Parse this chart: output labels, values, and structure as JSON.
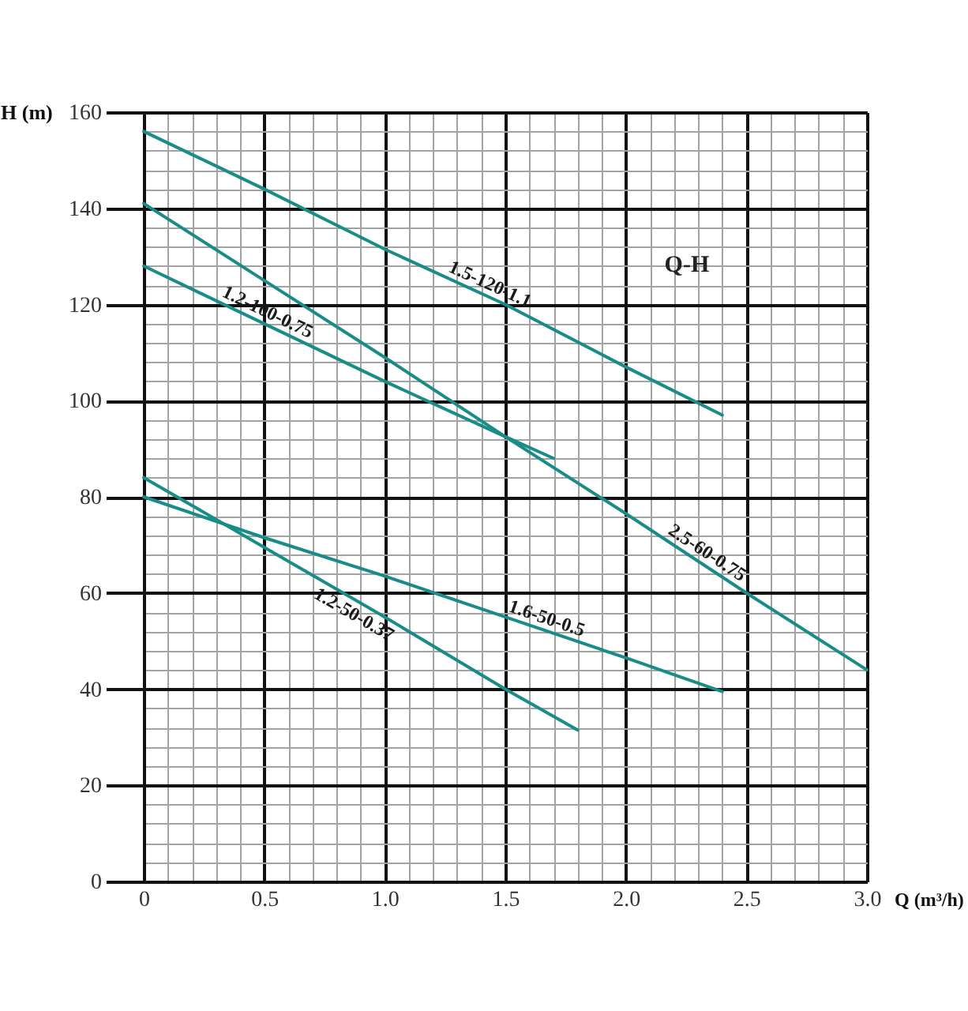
{
  "chart_data": {
    "type": "line",
    "title": "Q-H",
    "xlabel": "Q (m³/h)",
    "ylabel": "H (m)",
    "xlim": [
      0,
      3
    ],
    "ylim": [
      0,
      160
    ],
    "xticks": [
      0,
      {
        "value": 0.1,
        "label": null
      },
      {
        "value": 0.2,
        "label": null
      },
      {
        "value": 0.3,
        "label": null
      },
      {
        "value": 0.4,
        "label": null
      },
      0.5,
      {
        "value": 0.6,
        "label": null
      },
      {
        "value": 0.7,
        "label": null
      },
      {
        "value": 0.8,
        "label": null
      },
      {
        "value": 0.9,
        "label": null
      },
      {
        "value": 1,
        "label": "1.0"
      },
      {
        "value": 1.1,
        "label": null
      },
      {
        "value": 1.2,
        "label": null
      },
      {
        "value": 1.3,
        "label": null
      },
      {
        "value": 1.4,
        "label": null
      },
      1.5,
      {
        "value": 1.6,
        "label": null
      },
      {
        "value": 1.7,
        "label": null
      },
      {
        "value": 1.8,
        "label": null
      },
      {
        "value": 1.9,
        "label": null
      },
      {
        "value": 2,
        "label": "2.0"
      },
      {
        "value": 2.1,
        "label": null
      },
      {
        "value": 2.2,
        "label": null
      },
      {
        "value": 2.3,
        "label": null
      },
      {
        "value": 2.4,
        "label": null
      },
      2.5,
      {
        "value": 2.6,
        "label": null
      },
      {
        "value": 2.7,
        "label": null
      },
      {
        "value": 2.8,
        "label": null
      },
      {
        "value": 2.9,
        "label": null
      },
      {
        "value": 3,
        "label": "3.0"
      }
    ],
    "yticks": [
      0,
      {
        "value": 4,
        "label": null
      },
      {
        "value": 8,
        "label": null
      },
      {
        "value": 12,
        "label": null
      },
      {
        "value": 16,
        "label": null
      },
      20,
      {
        "value": 24,
        "label": null
      },
      {
        "value": 28,
        "label": null
      },
      {
        "value": 32,
        "label": null
      },
      {
        "value": 36,
        "label": null
      },
      40,
      {
        "value": 44,
        "label": null
      },
      {
        "value": 48,
        "label": null
      },
      {
        "value": 52,
        "label": null
      },
      {
        "value": 56,
        "label": null
      },
      60,
      {
        "value": 64,
        "label": null
      },
      {
        "value": 68,
        "label": null
      },
      {
        "value": 72,
        "label": null
      },
      {
        "value": 76,
        "label": null
      },
      80,
      {
        "value": 84,
        "label": null
      },
      {
        "value": 88,
        "label": null
      },
      {
        "value": 92,
        "label": null
      },
      {
        "value": 96,
        "label": null
      },
      100,
      {
        "value": 104,
        "label": null
      },
      {
        "value": 108,
        "label": null
      },
      {
        "value": 112,
        "label": null
      },
      {
        "value": 116,
        "label": null
      },
      120,
      {
        "value": 124,
        "label": null
      },
      {
        "value": 128,
        "label": null
      },
      {
        "value": 132,
        "label": null
      },
      {
        "value": 136,
        "label": null
      },
      140,
      {
        "value": 144,
        "label": null
      },
      {
        "value": 148,
        "label": null
      },
      {
        "value": 152,
        "label": null
      },
      {
        "value": 156,
        "label": null
      },
      160
    ],
    "grid": true,
    "legend": false,
    "series": [
      {
        "name": "1.5-120-1.1",
        "color": "#1a8c88",
        "x": [
          0,
          0.5,
          1,
          1.5,
          2,
          2.4
        ],
        "values": [
          156,
          144,
          131.5,
          120,
          107,
          97
        ]
      },
      {
        "name": "2.5-60-0.75",
        "color": "#1a8c88",
        "x": [
          0,
          0.5,
          1,
          1.5,
          2,
          2.5,
          3
        ],
        "values": [
          141,
          125,
          109,
          92.5,
          76.5,
          60,
          44
        ]
      },
      {
        "name": "1.2-100-0.75",
        "color": "#1a8c88",
        "x": [
          0,
          0.5,
          1,
          1.5,
          1.7
        ],
        "values": [
          128,
          116,
          104,
          92.5,
          88
        ]
      },
      {
        "name": "1.2-50-0.37",
        "color": "#1a8c88",
        "x": [
          0,
          0.5,
          1,
          1.5,
          1.8
        ],
        "values": [
          84,
          69.5,
          55,
          40,
          31.5
        ]
      },
      {
        "name": "1.6-50-0.5",
        "color": "#1a8c88",
        "x": [
          0,
          0.5,
          1,
          1.5,
          2,
          2.4
        ],
        "values": [
          80,
          71.5,
          63.5,
          55,
          46.5,
          39.5
        ]
      }
    ]
  }
}
